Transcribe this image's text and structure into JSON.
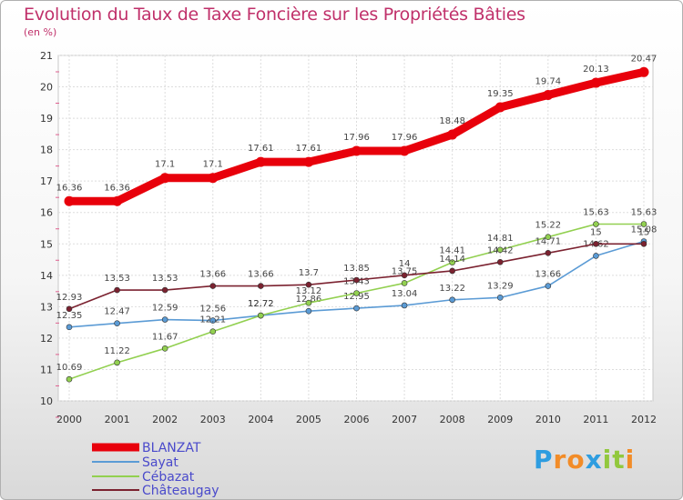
{
  "chart_data": {
    "type": "line",
    "title": "Evolution du Taux de Taxe Foncière sur les Propriétés Bâties",
    "ylabel": "(en %)",
    "xlabel": "",
    "ylim": [
      10,
      21
    ],
    "yticks": [
      "10",
      "11",
      "12",
      "13",
      "14",
      "15",
      "16",
      "17",
      "18",
      "19",
      "20",
      "21"
    ],
    "categories": [
      "2000",
      "2001",
      "2002",
      "2003",
      "2004",
      "2005",
      "2006",
      "2007",
      "2008",
      "2009",
      "2010",
      "2011",
      "2012"
    ],
    "series": [
      {
        "name": "BLANZAT",
        "color": "#e8000b",
        "values": [
          16.36,
          16.36,
          17.1,
          17.1,
          17.61,
          17.61,
          17.96,
          17.96,
          18.48,
          19.35,
          19.74,
          20.13,
          20.47
        ],
        "labels": [
          "16.36",
          "16.36",
          "17.1",
          "17.1",
          "17.61",
          "17.61",
          "17.96",
          "17.96",
          "18.48",
          "19.35",
          "19.74",
          "20.13",
          "20.47"
        ]
      },
      {
        "name": "Sayat",
        "color": "#5b9bd5",
        "values": [
          12.35,
          12.47,
          12.59,
          12.56,
          12.72,
          12.86,
          12.95,
          13.04,
          13.22,
          13.29,
          13.66,
          14.62,
          15.08
        ],
        "labels": [
          "12.35",
          "12.47",
          "12.59",
          "12.56",
          "12.72",
          "12.86",
          "12.95",
          "13.04",
          "13.22",
          "13.29",
          "13.66",
          "14.62",
          "15.08"
        ]
      },
      {
        "name": "Cébazat",
        "color": "#92d050",
        "values": [
          10.69,
          11.22,
          11.67,
          12.21,
          12.72,
          13.12,
          13.43,
          13.75,
          14.41,
          14.81,
          15.22,
          15.63,
          15.63
        ],
        "labels": [
          "10.69",
          "11.22",
          "11.67",
          "12.21",
          "12.72",
          "13.12",
          "13.43",
          "13.75",
          "14.41",
          "14.81",
          "15.22",
          "15.63",
          "15.63"
        ]
      },
      {
        "name": "Châteaugay",
        "color": "#7b2230",
        "values": [
          12.93,
          13.53,
          13.53,
          13.66,
          13.66,
          13.7,
          13.85,
          14,
          14.14,
          14.42,
          14.71,
          15,
          15
        ],
        "labels": [
          "12.93",
          "13.53",
          "13.53",
          "13.66",
          "13.66",
          "13.7",
          "13.85",
          "14",
          "14.14",
          "14.42",
          "14.71",
          "15",
          "15"
        ]
      }
    ]
  },
  "logo": {
    "letters": [
      "P",
      "r",
      "o",
      "x",
      "i",
      "t",
      "i"
    ],
    "colors": [
      "#2e9de0",
      "#f28c28",
      "#f28c28",
      "#2e9de0",
      "#92c83e",
      "#92c83e",
      "#f28c28"
    ]
  }
}
